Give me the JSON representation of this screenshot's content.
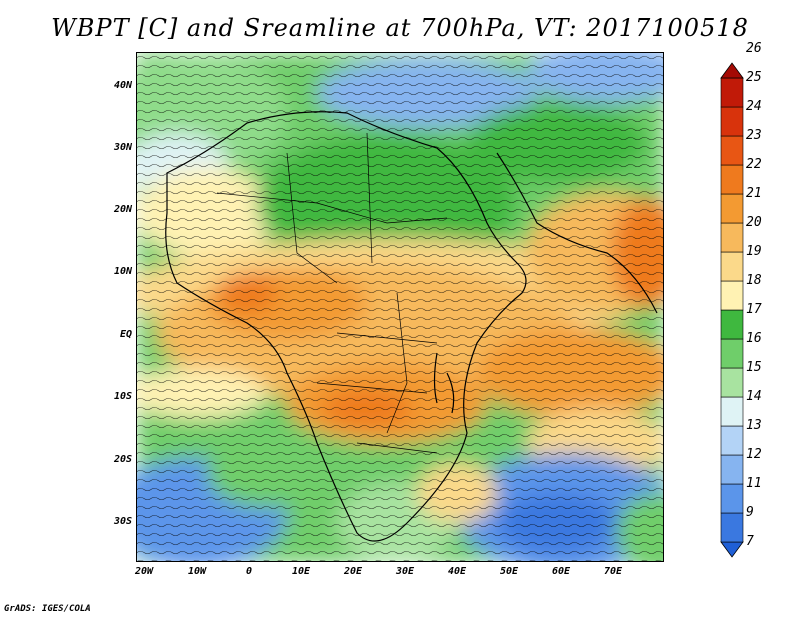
{
  "title": "WBPT [C] and Sreamline at 700hPa, VT: 2017100518",
  "lat_labels": [
    "40N",
    "30N",
    "20N",
    "10N",
    "EQ",
    "10S",
    "20S",
    "30S"
  ],
  "lon_labels": [
    "20W",
    "10W",
    "0",
    "10E",
    "20E",
    "30E",
    "40E",
    "50E",
    "60E",
    "70E"
  ],
  "colorbar": {
    "levels": [
      "7",
      "9",
      "11",
      "12",
      "13",
      "14",
      "15",
      "16",
      "17",
      "18",
      "19",
      "20",
      "21",
      "22",
      "23",
      "24",
      "25",
      "26"
    ],
    "colors": [
      "#1f5fd6",
      "#3a78e0",
      "#5b95ea",
      "#86b4f0",
      "#b3d3f6",
      "#dff3f5",
      "#a8e3a0",
      "#6fce6a",
      "#3fb83f",
      "#fff2b3",
      "#fbd98a",
      "#f7b95c",
      "#f39a32",
      "#ef7a1e",
      "#e85614",
      "#d8330c",
      "#c11a08",
      "#a40a04"
    ]
  },
  "credit": "GrADS: IGES/COLA"
}
